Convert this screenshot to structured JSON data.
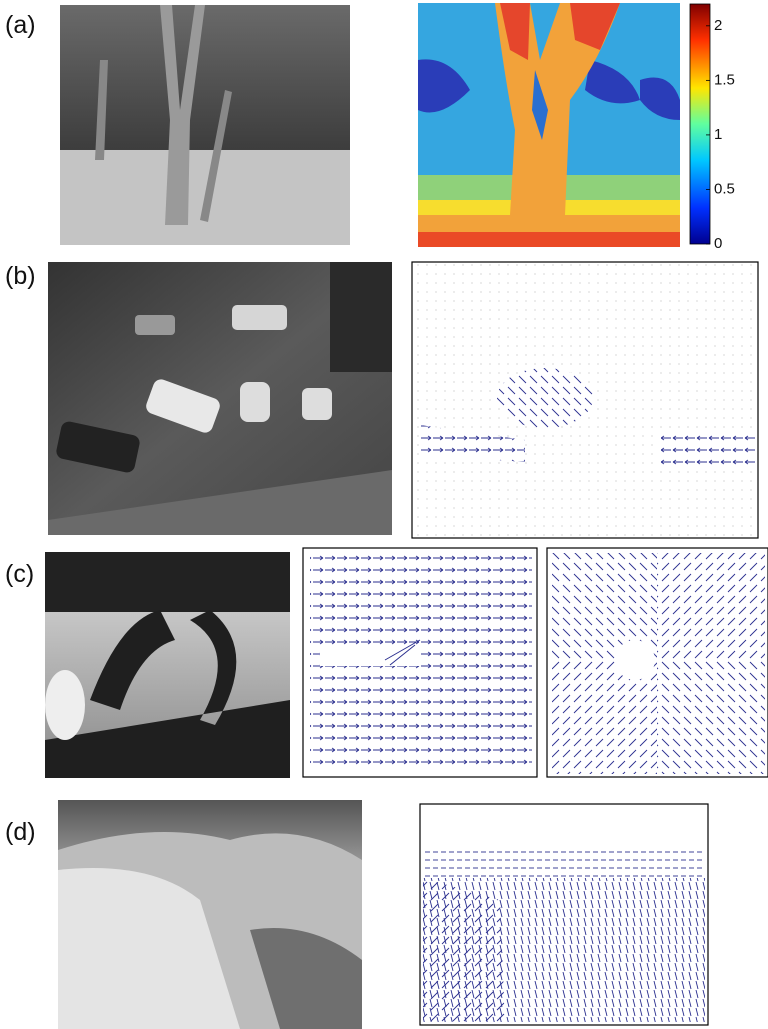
{
  "panels": [
    {
      "label": "(a)"
    },
    {
      "label": "(b)"
    },
    {
      "label": "(c)"
    },
    {
      "label": "(d)"
    }
  ],
  "colorbar": {
    "lim": [
      0,
      2.2
    ],
    "ticks": [
      0,
      0.5,
      1,
      1.5,
      2
    ]
  }
}
